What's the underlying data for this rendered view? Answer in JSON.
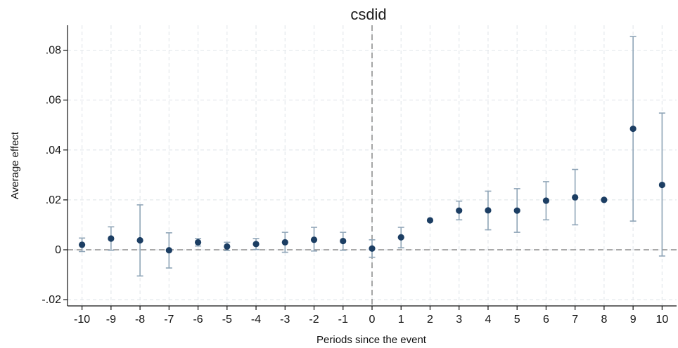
{
  "chart_data": {
    "type": "scatter",
    "title": "csdid",
    "xlabel": "Periods since the event",
    "ylabel": "Average effect",
    "xlim": [
      -10.5,
      10.5
    ],
    "ylim": [
      -0.0225,
      0.09
    ],
    "x_ticks": [
      -10,
      -9,
      -8,
      -7,
      -6,
      -5,
      -4,
      -3,
      -2,
      -1,
      0,
      1,
      2,
      3,
      4,
      5,
      6,
      7,
      8,
      9,
      10
    ],
    "x_tick_labels": [
      "-10",
      "-9",
      "-8",
      "-7",
      "-6",
      "-5",
      "-4",
      "-3",
      "-2",
      "-1",
      "0",
      "1",
      "2",
      "3",
      "4",
      "5",
      "6",
      "7",
      "8",
      "9",
      "10"
    ],
    "y_ticks": [
      -0.02,
      0,
      0.02,
      0.04,
      0.06,
      0.08
    ],
    "y_tick_labels": [
      "-.02",
      "0",
      ".02",
      ".04",
      ".06",
      ".08"
    ],
    "grid": true,
    "reference_lines": {
      "horizontal_y": 0,
      "vertical_x": 0,
      "style": "dashed"
    },
    "series": [
      {
        "x": [
          -10,
          -9,
          -8,
          -7,
          -6,
          -5,
          -4,
          -3,
          -2,
          -1,
          0,
          1,
          2,
          3,
          4,
          5,
          6,
          7,
          8,
          9,
          10
        ],
        "values": [
          0.002,
          0.0045,
          0.0038,
          -0.0002,
          0.003,
          0.0013,
          0.0023,
          0.003,
          0.004,
          0.0035,
          0.0005,
          0.005,
          0.0118,
          0.0157,
          0.0158,
          0.0157,
          0.0197,
          0.021,
          0.02,
          0.0485,
          0.026
        ],
        "ci_lower": [
          -0.0007,
          -0.0002,
          -0.0105,
          -0.0073,
          0.0015,
          -0.0003,
          0.0001,
          -0.001,
          -0.0005,
          -0.0002,
          -0.003,
          0.0008,
          0.0118,
          0.012,
          0.008,
          0.007,
          0.012,
          0.01,
          0.02,
          0.0115,
          -0.0025
        ],
        "ci_upper": [
          0.0047,
          0.0092,
          0.018,
          0.0068,
          0.0045,
          0.003,
          0.0045,
          0.007,
          0.009,
          0.007,
          0.004,
          0.009,
          0.0118,
          0.0195,
          0.0235,
          0.0245,
          0.0273,
          0.0322,
          0.02,
          0.0855,
          0.0548
        ]
      }
    ],
    "colors": {
      "marker": "#1c3e63",
      "ci": "#8fa5b7",
      "grid": "#e4e8ec",
      "reference": "#777777",
      "axis": "#111111"
    }
  }
}
